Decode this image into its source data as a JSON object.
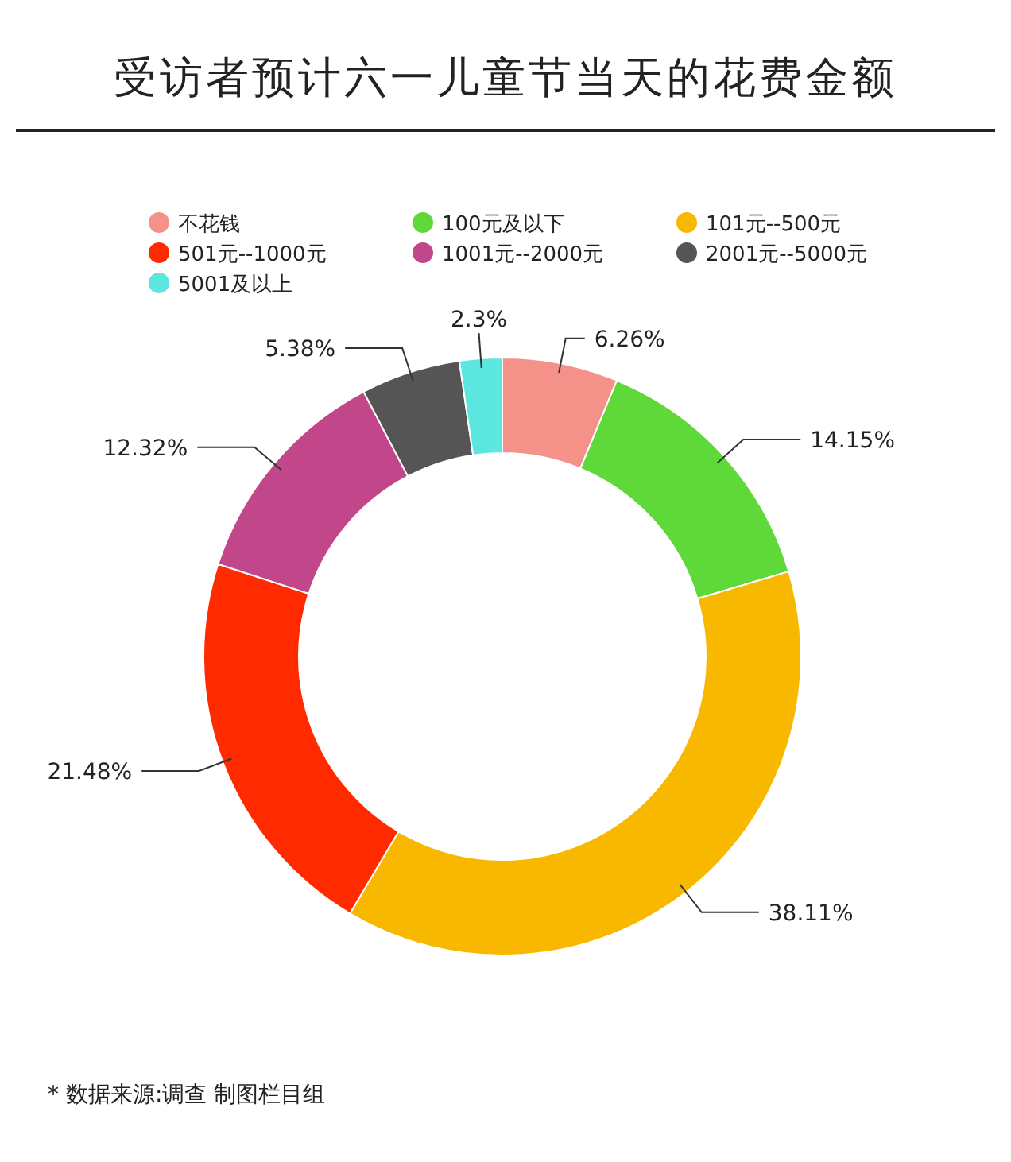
{
  "chart_data": {
    "type": "donut",
    "title": "受访者预计六一儿童节当天的花费金额",
    "categories": [
      "不花钱",
      "100元及以下",
      "101元--500元",
      "501元--1000元",
      "1001元--2000元",
      "2001元--5000元",
      "5001及以上"
    ],
    "values": [
      6.26,
      14.15,
      38.11,
      21.48,
      12.32,
      5.38,
      2.3
    ],
    "colors": [
      "#f4928a",
      "#5fd83a",
      "#f9b800",
      "#ff2a00",
      "#c2478a",
      "#555555",
      "#5ce6e0"
    ],
    "value_labels": [
      "6.26%",
      "14.15%",
      "38.11%",
      "21.48%",
      "12.32%",
      "5.38%",
      "2.3%"
    ],
    "legend": "top",
    "annotations": [
      "* 数据来源:调查 制图栏目组"
    ]
  }
}
